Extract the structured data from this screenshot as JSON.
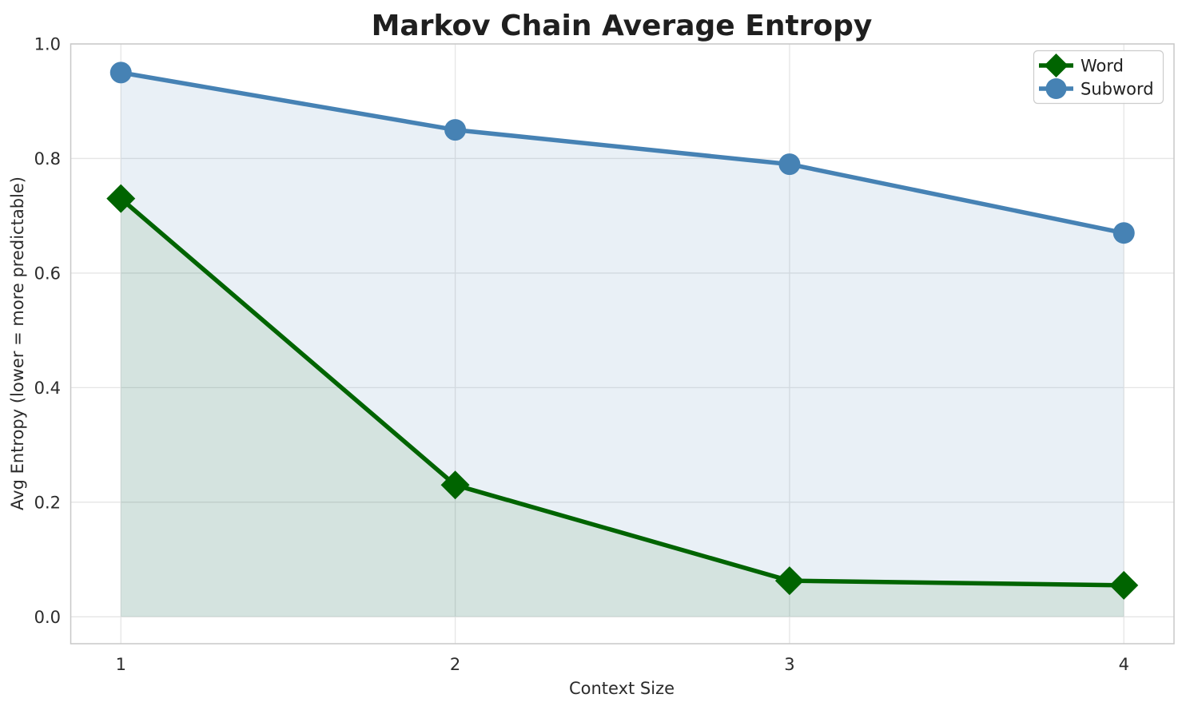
{
  "chart_data": {
    "type": "line",
    "title": "Markov Chain Average Entropy",
    "xlabel": "Context Size",
    "ylabel": "Avg Entropy (lower = more predictable)",
    "x": [
      1,
      2,
      3,
      4
    ],
    "xtick_labels": [
      "1",
      "2",
      "3",
      "4"
    ],
    "ytick_values": [
      0.0,
      0.2,
      0.4,
      0.6,
      0.8,
      1.0
    ],
    "ytick_labels": [
      "0.0",
      "0.2",
      "0.4",
      "0.6",
      "0.8",
      "1.0"
    ],
    "xlim": [
      0.85,
      4.15
    ],
    "ylim": [
      -0.047,
      1.0
    ],
    "grid": true,
    "legend_position": "upper right",
    "series": [
      {
        "name": "Word",
        "values": [
          0.73,
          0.23,
          0.063,
          0.055
        ],
        "color": "#006400",
        "marker": "diamond",
        "fill_to_zero": true,
        "fill_opacity": 0.09
      },
      {
        "name": "Subword",
        "values": [
          0.95,
          0.85,
          0.79,
          0.67
        ],
        "color": "#4682b4",
        "marker": "circle",
        "fill_to_zero": true,
        "fill_opacity": 0.12
      }
    ]
  },
  "style_colors": {
    "background": "#ffffff",
    "grid": "#e5e5e5",
    "spine": "#c8c8c8",
    "title_text": "#1f1f1f",
    "tick_text": "#2b2b2b",
    "legend_border": "#cccccc"
  }
}
